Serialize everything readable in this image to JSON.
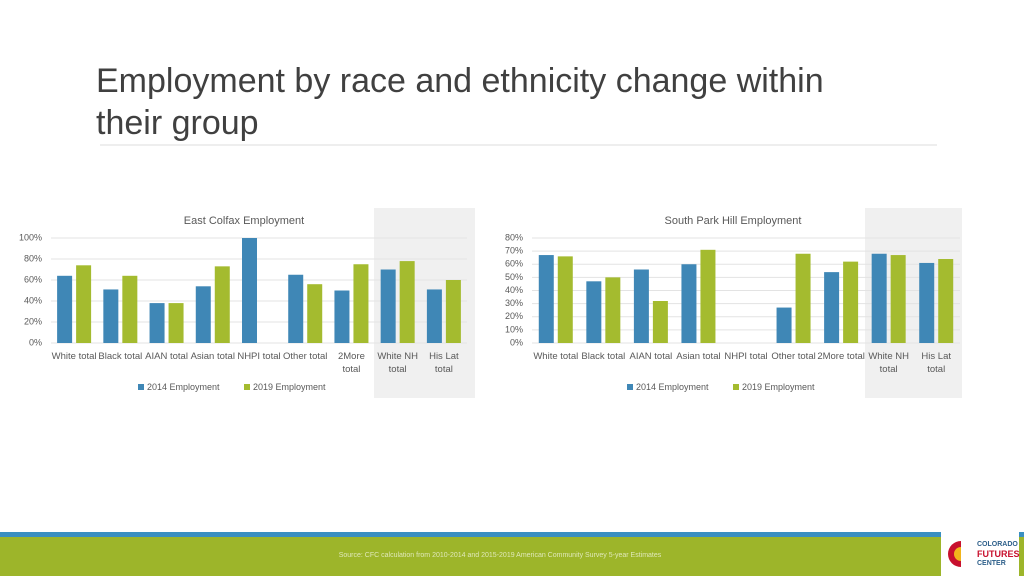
{
  "slide": {
    "title": "Employment by race and ethnicity change within their group",
    "source": "Source: CFC calculation from 2010-2014 and 2015-2019 American Community Survey 5-year Estimates",
    "logo": [
      "COLORADO",
      "FUTURES",
      "CENTER"
    ]
  },
  "chart_data": [
    {
      "type": "bar",
      "title": "East Colfax Employment",
      "categories": [
        "White total",
        "Black total",
        "AIAN total",
        "Asian total",
        "NHPI total",
        "Other total",
        "2More total",
        "White NH total",
        "His Lat total"
      ],
      "series": [
        {
          "name": "2014 Employment",
          "color": "#3f87b6",
          "values": [
            64,
            51,
            38,
            54,
            100,
            65,
            50,
            70,
            51
          ]
        },
        {
          "name": "2019 Employment",
          "color": "#a4bb2f",
          "values": [
            74,
            64,
            38,
            73,
            null,
            56,
            75,
            78,
            60
          ]
        }
      ],
      "ylim": [
        0,
        100
      ],
      "yticks": [
        {
          "value": 0,
          "label": "0%"
        },
        {
          "value": 20,
          "label": "20%"
        },
        {
          "value": 40,
          "label": "40%"
        },
        {
          "value": 60,
          "label": "60%"
        },
        {
          "value": 80,
          "label": "80%"
        },
        {
          "value": 100,
          "label": "100%"
        }
      ],
      "grid": true,
      "legend": "bottom"
    },
    {
      "type": "bar",
      "title": "South Park Hill Employment",
      "categories": [
        "White total",
        "Black total",
        "AIAN total",
        "Asian total",
        "NHPI total",
        "Other total",
        "2More total",
        "White NH total",
        "His Lat total"
      ],
      "series": [
        {
          "name": "2014 Employment",
          "color": "#3f87b6",
          "values": [
            67,
            47,
            56,
            60,
            null,
            27,
            54,
            68,
            61
          ]
        },
        {
          "name": "2019 Employment",
          "color": "#a4bb2f",
          "values": [
            66,
            50,
            32,
            71,
            null,
            68,
            62,
            67,
            64
          ]
        }
      ],
      "ylim": [
        0,
        80
      ],
      "yticks": [
        {
          "value": 0,
          "label": "0%"
        },
        {
          "value": 10,
          "label": "10%"
        },
        {
          "value": 20,
          "label": "20%"
        },
        {
          "value": 30,
          "label": "30%"
        },
        {
          "value": 40,
          "label": "40%"
        },
        {
          "value": 50,
          "label": "50%"
        },
        {
          "value": 60,
          "label": "60%"
        },
        {
          "value": 70,
          "label": "70%"
        },
        {
          "value": 80,
          "label": "80%"
        }
      ],
      "grid": true,
      "legend": "bottom"
    }
  ]
}
